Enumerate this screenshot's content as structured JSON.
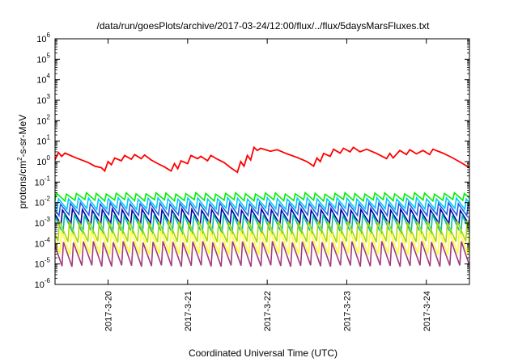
{
  "chart_data": {
    "type": "line",
    "title": "/data/run/goesPlots/archive/2017-03-24/12:00/flux/../flux/5daysMarsFluxes.txt",
    "xlabel": "Coordinated Universal Time (UTC)",
    "ylabel_parts": {
      "base": "protons/cm",
      "sup": "2",
      "rest": "-s-sr-MeV"
    },
    "y_scale": "log",
    "ylim": [
      1e-06,
      1000000.0
    ],
    "y_ticks": [
      {
        "exp": "-6",
        "value": 1e-06
      },
      {
        "exp": "-5",
        "value": 1e-05
      },
      {
        "exp": "-4",
        "value": 0.0001
      },
      {
        "exp": "-3",
        "value": 0.001
      },
      {
        "exp": "-2",
        "value": 0.01
      },
      {
        "exp": "-1",
        "value": 0.1
      },
      {
        "exp": "0",
        "value": 1
      },
      {
        "exp": "1",
        "value": 10
      },
      {
        "exp": "2",
        "value": 100
      },
      {
        "exp": "3",
        "value": 1000.0
      },
      {
        "exp": "4",
        "value": 10000.0
      },
      {
        "exp": "5",
        "value": 100000.0
      },
      {
        "exp": "6",
        "value": 1000000.0
      }
    ],
    "xlim": [
      "2017-03-19 08:00",
      "2017-03-24 13:00"
    ],
    "x_ticks": [
      "2017-3-20",
      "2017-3-21",
      "2017-3-22",
      "2017-3-23",
      "2017-3-24"
    ],
    "grid": false,
    "legend": "none",
    "series": [
      {
        "color": "#ff0000",
        "points": [
          [
            "2017-03-19 08:00",
            1.2
          ],
          [
            "2017-03-19 09:00",
            2.8
          ],
          [
            "2017-03-19 10:00",
            1.8
          ],
          [
            "2017-03-19 11:00",
            2.6
          ],
          [
            "2017-03-19 14:00",
            1.6
          ],
          [
            "2017-03-19 18:00",
            0.9
          ],
          [
            "2017-03-19 20:00",
            0.6
          ],
          [
            "2017-03-19 22:00",
            0.5
          ],
          [
            "2017-03-19 23:00",
            0.35
          ],
          [
            "2017-03-20 00:00",
            1.0
          ],
          [
            "2017-03-20 01:00",
            0.7
          ],
          [
            "2017-03-20 02:00",
            1.5
          ],
          [
            "2017-03-20 04:00",
            1.1
          ],
          [
            "2017-03-20 05:00",
            2.0
          ],
          [
            "2017-03-20 07:00",
            1.3
          ],
          [
            "2017-03-20 08:00",
            2.2
          ],
          [
            "2017-03-20 10:00",
            1.4
          ],
          [
            "2017-03-20 11:00",
            2.1
          ],
          [
            "2017-03-20 13:00",
            1.2
          ],
          [
            "2017-03-20 15:00",
            0.8
          ],
          [
            "2017-03-20 17:00",
            0.55
          ],
          [
            "2017-03-20 19:00",
            0.35
          ],
          [
            "2017-03-20 20:00",
            0.8
          ],
          [
            "2017-03-20 21:00",
            0.45
          ],
          [
            "2017-03-20 22:00",
            1.1
          ],
          [
            "2017-03-21 00:00",
            0.8
          ],
          [
            "2017-03-21 01:00",
            2.0
          ],
          [
            "2017-03-21 03:00",
            1.4
          ],
          [
            "2017-03-21 04:00",
            1.8
          ],
          [
            "2017-03-21 06:00",
            1.1
          ],
          [
            "2017-03-21 07:00",
            2.0
          ],
          [
            "2017-03-21 09:00",
            1.3
          ],
          [
            "2017-03-21 11:00",
            0.9
          ],
          [
            "2017-03-21 13:00",
            0.5
          ],
          [
            "2017-03-21 15:00",
            0.3
          ],
          [
            "2017-03-21 16:00",
            1.0
          ],
          [
            "2017-03-21 17:00",
            0.6
          ],
          [
            "2017-03-21 18:00",
            2.0
          ],
          [
            "2017-03-21 19:00",
            1.2
          ],
          [
            "2017-03-21 20:00",
            5.0
          ],
          [
            "2017-03-21 21:00",
            3.5
          ],
          [
            "2017-03-21 22:00",
            4.5
          ],
          [
            "2017-03-22 01:00",
            3.2
          ],
          [
            "2017-03-22 03:00",
            3.8
          ],
          [
            "2017-03-22 06:00",
            2.4
          ],
          [
            "2017-03-22 09:00",
            1.6
          ],
          [
            "2017-03-22 12:00",
            1.0
          ],
          [
            "2017-03-22 14:00",
            0.6
          ],
          [
            "2017-03-22 15:00",
            1.5
          ],
          [
            "2017-03-22 16:00",
            1.0
          ],
          [
            "2017-03-22 17:00",
            2.5
          ],
          [
            "2017-03-22 19:00",
            1.8
          ],
          [
            "2017-03-22 20:00",
            4.0
          ],
          [
            "2017-03-22 22:00",
            2.6
          ],
          [
            "2017-03-22 23:00",
            4.5
          ],
          [
            "2017-03-23 01:00",
            3.0
          ],
          [
            "2017-03-23 02:00",
            5.0
          ],
          [
            "2017-03-23 04:00",
            3.0
          ],
          [
            "2017-03-23 06:00",
            4.0
          ],
          [
            "2017-03-23 09:00",
            2.5
          ],
          [
            "2017-03-23 12:00",
            1.4
          ],
          [
            "2017-03-23 13:00",
            2.5
          ],
          [
            "2017-03-23 14:00",
            1.5
          ],
          [
            "2017-03-23 16:00",
            3.5
          ],
          [
            "2017-03-23 18:00",
            2.2
          ],
          [
            "2017-03-23 19:00",
            3.8
          ],
          [
            "2017-03-23 21:00",
            2.4
          ],
          [
            "2017-03-23 23:00",
            3.5
          ],
          [
            "2017-03-24 01:00",
            2.2
          ],
          [
            "2017-03-24 02:00",
            4.0
          ],
          [
            "2017-03-24 05:00",
            2.6
          ],
          [
            "2017-03-24 08:00",
            1.5
          ],
          [
            "2017-03-24 11:00",
            0.8
          ],
          [
            "2017-03-24 13:00",
            0.5
          ]
        ]
      },
      {
        "color": "#00ee00",
        "peak": 0.028,
        "trough": 0.013,
        "phase": 0.0
      },
      {
        "color": "#00c8ff",
        "peak": 0.016,
        "trough": 0.005,
        "phase": 0.2
      },
      {
        "color": "#1f5fe0",
        "peak": 0.009,
        "trough": 0.0025,
        "phase": 0.4
      },
      {
        "color": "#0000a8",
        "peak": 0.0045,
        "trough": 0.0009,
        "phase": 0.6
      },
      {
        "color": "#00c0a0",
        "peak": 0.0025,
        "trough": 0.0003,
        "phase": 0.8
      },
      {
        "color": "#a8d800",
        "peak": 0.0012,
        "trough": 0.00012,
        "phase": 0.3
      },
      {
        "color": "#ffff30",
        "peak": 0.0004,
        "trough": 3e-05,
        "phase": 0.5
      },
      {
        "color": "#a03c7c",
        "peak": 0.00012,
        "trough": 8e-06,
        "phase": 0.7
      }
    ],
    "oscillation_period_hours": 3
  }
}
